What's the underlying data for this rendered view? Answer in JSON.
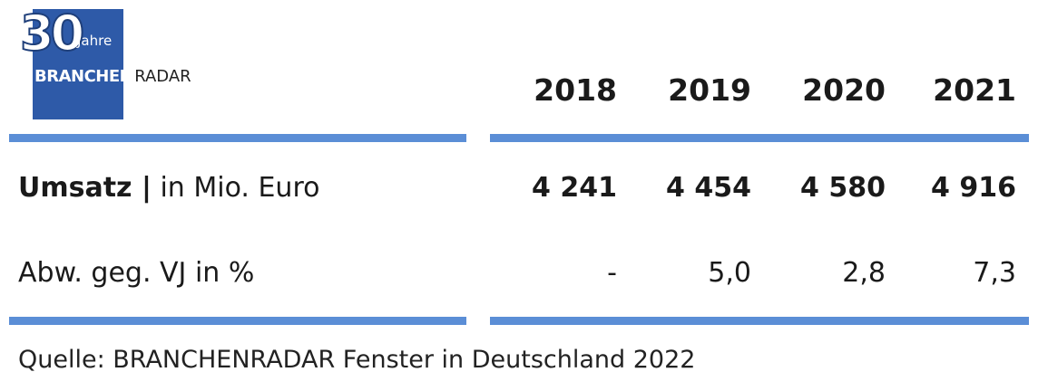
{
  "logo": {
    "number": "30",
    "jahre": "Jahre",
    "word_bold": "BRANCHEN",
    "word_regular": "RADAR"
  },
  "chart_data": {
    "type": "table",
    "columns": [
      "2018",
      "2019",
      "2020",
      "2021"
    ],
    "rows": [
      {
        "label_bold": "Umsatz |",
        "label_regular": " in Mio. Euro",
        "values": [
          "4 241",
          "4 454",
          "4 580",
          "4 916"
        ]
      },
      {
        "label": "Abw. geg. VJ in %",
        "values": [
          "-",
          "5,0",
          "2,8",
          "7,3"
        ]
      }
    ],
    "source": "Quelle: BRANCHENRADAR Fenster in Deutschland 2022"
  },
  "colors": {
    "rule": "#5b8ed6",
    "logo_bg": "#2e5aa8"
  }
}
